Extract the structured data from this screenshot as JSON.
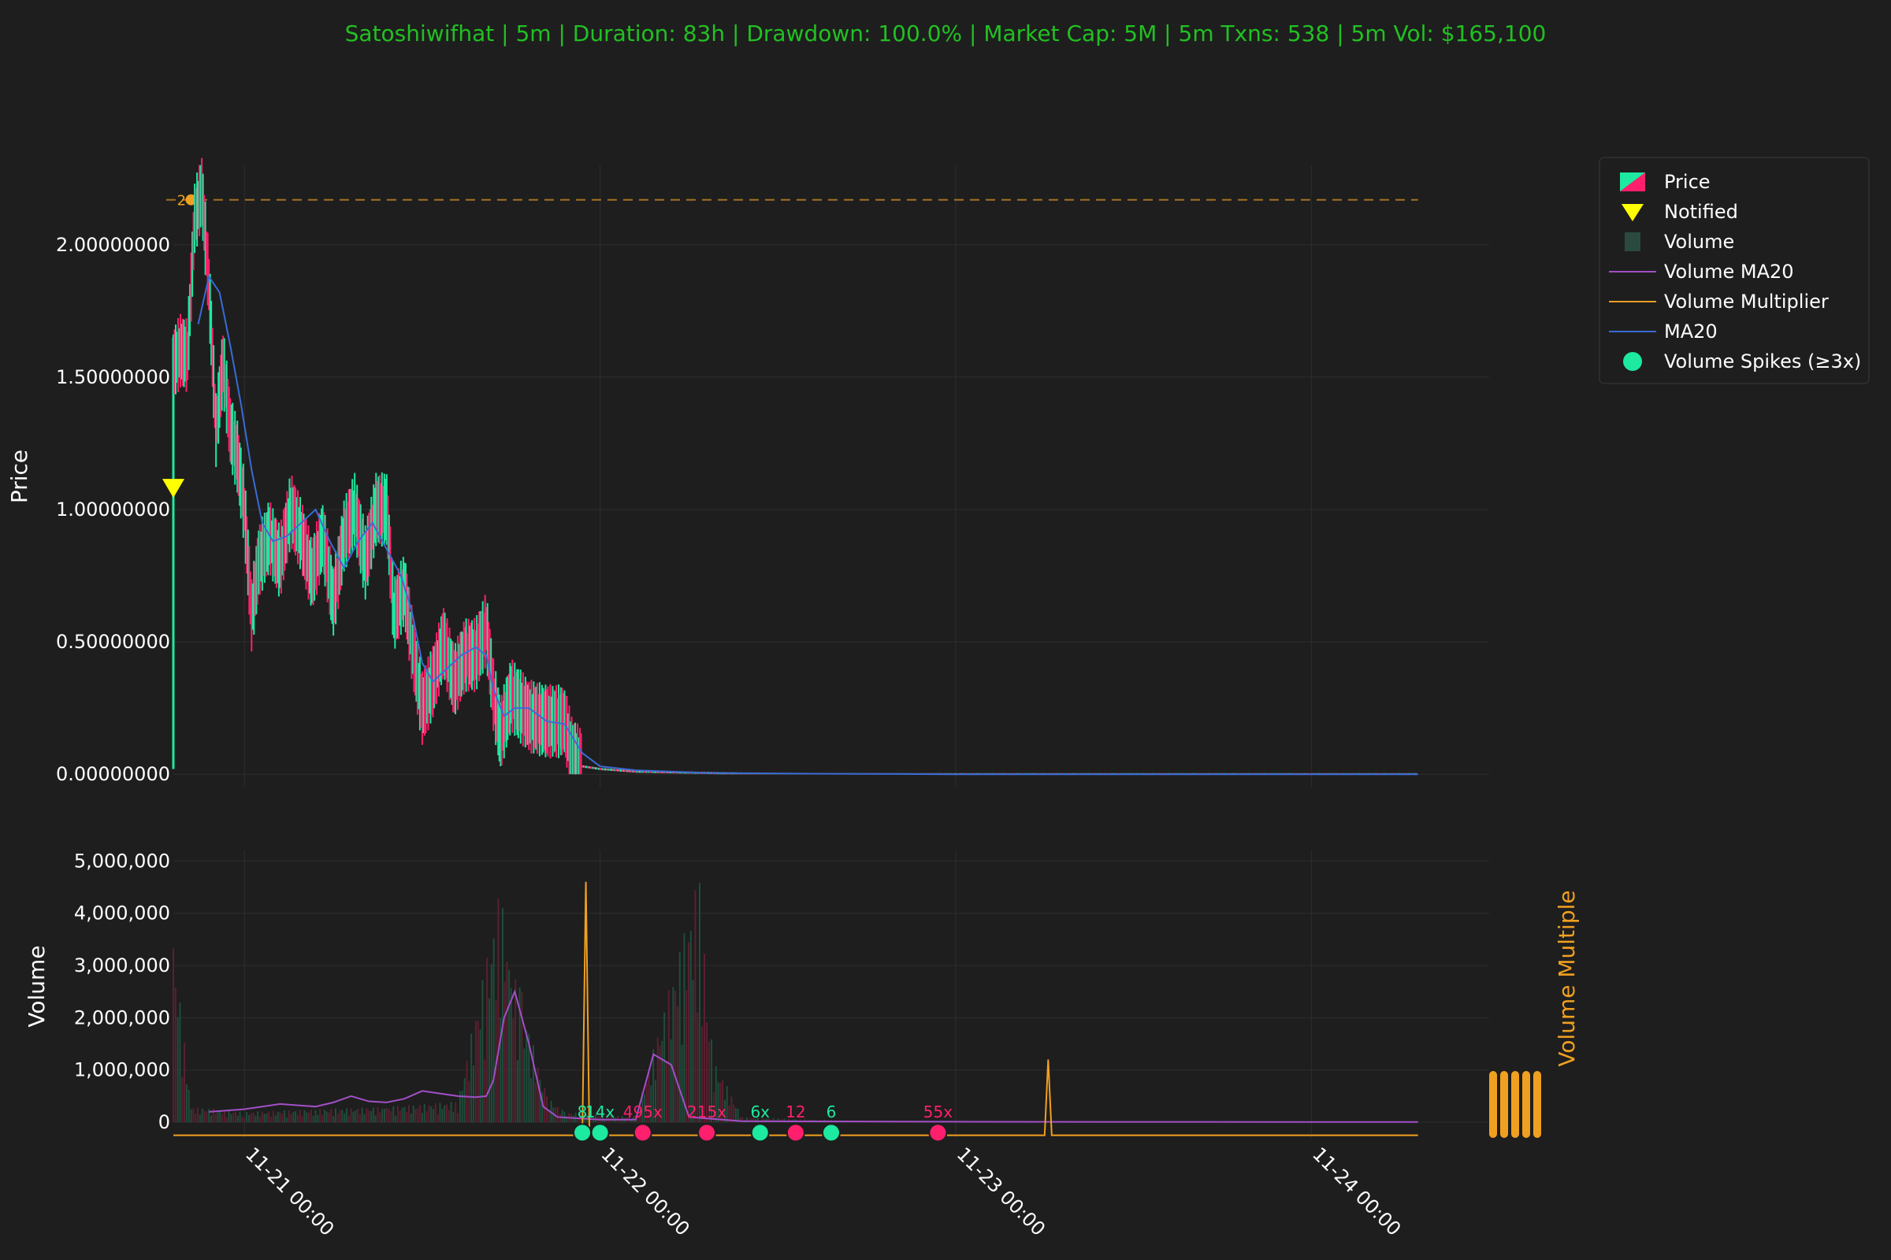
{
  "title": "Satoshiwifhat | 5m | Duration: 83h | Drawdown: 100.0% | Market Cap: 5M | 5m Txns: 538 | 5m Vol: $165,100",
  "colors": {
    "background": "#1e1e1e",
    "title": "#22c022",
    "up": "#1de9a0",
    "down": "#ff1f6d",
    "ma20": "#3a6bd6",
    "volume_ma20": "#a24fc8",
    "volume_multiplier": "#f0a020",
    "notified": "#ffff00",
    "grid": "#2e2e2e",
    "legend_border": "#3a3a3a"
  },
  "legend": {
    "position": "top-right",
    "items": [
      {
        "label": "Price",
        "icon": "candle-icon"
      },
      {
        "label": "Notified",
        "icon": "triangle-down-icon"
      },
      {
        "label": "Volume",
        "icon": "square-icon"
      },
      {
        "label": "Volume MA20",
        "icon": "line-icon"
      },
      {
        "label": "Volume Multiplier",
        "icon": "line-icon"
      },
      {
        "label": "MA20",
        "icon": "line-icon"
      },
      {
        "label": "Volume Spikes (≥3x)",
        "icon": "circle-icon"
      }
    ]
  },
  "chart_data": [
    {
      "type": "line",
      "subtype": "candlestick",
      "ylabel": "Price",
      "ylim": [
        -0.05,
        2.3
      ],
      "yticks": [
        "0.00000000",
        "0.50000000",
        "1.00000000",
        "1.50000000",
        "2.00000000"
      ],
      "ytick_values": [
        0.0,
        0.5,
        1.0,
        1.5,
        2.0
      ],
      "xlim": [
        -0.2,
        3.5
      ],
      "xticks": [
        "11-21 00:00",
        "11-22 00:00",
        "11-23 00:00",
        "11-24 00:00"
      ],
      "xtick_values": [
        0,
        1,
        2,
        3
      ],
      "grid": true,
      "reference_line": {
        "y": 2.17,
        "style": "dashed",
        "label": "2"
      },
      "notified": {
        "x": -0.2,
        "y": 1.08
      },
      "price_path": [
        [
          -0.2,
          1.55
        ],
        [
          -0.18,
          1.6
        ],
        [
          -0.16,
          1.58
        ],
        [
          -0.14,
          2.1
        ],
        [
          -0.12,
          2.2
        ],
        [
          -0.1,
          1.85
        ],
        [
          -0.08,
          1.3
        ],
        [
          -0.06,
          1.55
        ],
        [
          -0.04,
          1.3
        ],
        [
          -0.02,
          1.2
        ],
        [
          0.0,
          1.0
        ],
        [
          0.02,
          0.6
        ],
        [
          0.04,
          0.8
        ],
        [
          0.07,
          0.9
        ],
        [
          0.1,
          0.8
        ],
        [
          0.13,
          1.0
        ],
        [
          0.16,
          0.9
        ],
        [
          0.19,
          0.75
        ],
        [
          0.22,
          0.9
        ],
        [
          0.25,
          0.65
        ],
        [
          0.28,
          0.9
        ],
        [
          0.31,
          1.0
        ],
        [
          0.34,
          0.8
        ],
        [
          0.37,
          1.0
        ],
        [
          0.4,
          1.0
        ],
        [
          0.42,
          0.6
        ],
        [
          0.45,
          0.7
        ],
        [
          0.47,
          0.5
        ],
        [
          0.5,
          0.25
        ],
        [
          0.53,
          0.35
        ],
        [
          0.56,
          0.5
        ],
        [
          0.59,
          0.35
        ],
        [
          0.62,
          0.45
        ],
        [
          0.65,
          0.45
        ],
        [
          0.68,
          0.55
        ],
        [
          0.7,
          0.3
        ],
        [
          0.72,
          0.15
        ],
        [
          0.75,
          0.3
        ],
        [
          0.78,
          0.25
        ],
        [
          0.8,
          0.22
        ],
        [
          0.85,
          0.2
        ],
        [
          0.9,
          0.2
        ],
        [
          0.92,
          0.08
        ],
        [
          0.95,
          0.03
        ],
        [
          1.0,
          0.02
        ],
        [
          1.1,
          0.01
        ],
        [
          1.3,
          0.005
        ],
        [
          1.5,
          0.0
        ],
        [
          2.0,
          0.0
        ],
        [
          2.5,
          0.0
        ],
        [
          3.0,
          0.0
        ],
        [
          3.3,
          0.0
        ]
      ],
      "series": [
        {
          "name": "MA20",
          "points": [
            [
              -0.13,
              1.7
            ],
            [
              -0.1,
              1.88
            ],
            [
              -0.07,
              1.82
            ],
            [
              -0.04,
              1.62
            ],
            [
              -0.01,
              1.4
            ],
            [
              0.02,
              1.15
            ],
            [
              0.05,
              0.95
            ],
            [
              0.08,
              0.88
            ],
            [
              0.12,
              0.9
            ],
            [
              0.16,
              0.95
            ],
            [
              0.2,
              1.0
            ],
            [
              0.24,
              0.88
            ],
            [
              0.28,
              0.78
            ],
            [
              0.32,
              0.88
            ],
            [
              0.36,
              0.95
            ],
            [
              0.4,
              0.85
            ],
            [
              0.44,
              0.75
            ],
            [
              0.47,
              0.62
            ],
            [
              0.5,
              0.42
            ],
            [
              0.53,
              0.35
            ],
            [
              0.57,
              0.4
            ],
            [
              0.61,
              0.45
            ],
            [
              0.65,
              0.48
            ],
            [
              0.68,
              0.45
            ],
            [
              0.7,
              0.32
            ],
            [
              0.73,
              0.22
            ],
            [
              0.76,
              0.25
            ],
            [
              0.8,
              0.25
            ],
            [
              0.85,
              0.2
            ],
            [
              0.9,
              0.19
            ],
            [
              0.95,
              0.08
            ],
            [
              1.0,
              0.03
            ],
            [
              1.1,
              0.015
            ],
            [
              1.3,
              0.005
            ],
            [
              1.6,
              0.002
            ],
            [
              2.0,
              0.0
            ],
            [
              2.5,
              0.0
            ],
            [
              3.0,
              0.0
            ],
            [
              3.3,
              0.0
            ]
          ]
        }
      ]
    },
    {
      "type": "bar",
      "ylabel": "Volume",
      "ylim": [
        -300000,
        5200000
      ],
      "yticks": [
        "0",
        "1,000,000",
        "2,000,000",
        "3,000,000",
        "4,000,000",
        "5,000,000"
      ],
      "ytick_values": [
        0,
        1000000,
        2000000,
        3000000,
        4000000,
        5000000
      ],
      "secondary_ylabel": "Volume Multiple",
      "grid": true,
      "volume_bars": [
        [
          -0.2,
          3600000
        ],
        [
          -0.15,
          300000
        ],
        [
          0.0,
          200000
        ],
        [
          0.2,
          250000
        ],
        [
          0.4,
          300000
        ],
        [
          0.6,
          400000
        ],
        [
          0.72,
          4500000
        ],
        [
          0.75,
          3000000
        ],
        [
          0.78,
          2500000
        ],
        [
          0.8,
          1800000
        ],
        [
          0.85,
          500000
        ],
        [
          0.9,
          200000
        ],
        [
          1.1,
          100000
        ],
        [
          1.28,
          4800000
        ],
        [
          1.3,
          2500000
        ],
        [
          1.32,
          1200000
        ],
        [
          1.4,
          100000
        ],
        [
          1.6,
          50000
        ],
        [
          2.0,
          20000
        ],
        [
          2.5,
          10000
        ],
        [
          3.0,
          10000
        ]
      ],
      "series": [
        {
          "name": "Volume MA20",
          "points": [
            [
              -0.1,
              200000
            ],
            [
              0.0,
              250000
            ],
            [
              0.1,
              350000
            ],
            [
              0.2,
              300000
            ],
            [
              0.25,
              380000
            ],
            [
              0.3,
              500000
            ],
            [
              0.35,
              400000
            ],
            [
              0.4,
              380000
            ],
            [
              0.45,
              450000
            ],
            [
              0.5,
              600000
            ],
            [
              0.55,
              550000
            ],
            [
              0.6,
              500000
            ],
            [
              0.65,
              480000
            ],
            [
              0.68,
              500000
            ],
            [
              0.7,
              800000
            ],
            [
              0.73,
              2000000
            ],
            [
              0.76,
              2500000
            ],
            [
              0.8,
              1500000
            ],
            [
              0.84,
              300000
            ],
            [
              0.88,
              100000
            ],
            [
              1.0,
              50000
            ],
            [
              1.1,
              50000
            ],
            [
              1.15,
              1300000
            ],
            [
              1.2,
              1100000
            ],
            [
              1.25,
              100000
            ],
            [
              1.4,
              20000
            ],
            [
              2.0,
              10000
            ],
            [
              3.0,
              5000
            ],
            [
              3.3,
              5000
            ]
          ]
        },
        {
          "name": "Volume Multiplier",
          "points": [
            [
              -0.2,
              -250000
            ],
            [
              0.95,
              -250000
            ],
            [
              0.96,
              4600000
            ],
            [
              0.97,
              -250000
            ],
            [
              2.25,
              -250000
            ],
            [
              2.26,
              1200000
            ],
            [
              2.27,
              -250000
            ],
            [
              3.3,
              -250000
            ]
          ]
        }
      ],
      "spikes": [
        {
          "x": 0.95,
          "label": "8",
          "color": "up"
        },
        {
          "x": 1.0,
          "label": "14x",
          "color": "up"
        },
        {
          "x": 1.12,
          "label": "495x",
          "color": "down"
        },
        {
          "x": 1.3,
          "label": "215x",
          "color": "down"
        },
        {
          "x": 1.45,
          "label": "6x",
          "color": "up"
        },
        {
          "x": 1.55,
          "label": "12",
          "color": "down"
        },
        {
          "x": 1.65,
          "label": "6",
          "color": "up"
        },
        {
          "x": 1.95,
          "label": "55x",
          "color": "down"
        }
      ]
    }
  ]
}
